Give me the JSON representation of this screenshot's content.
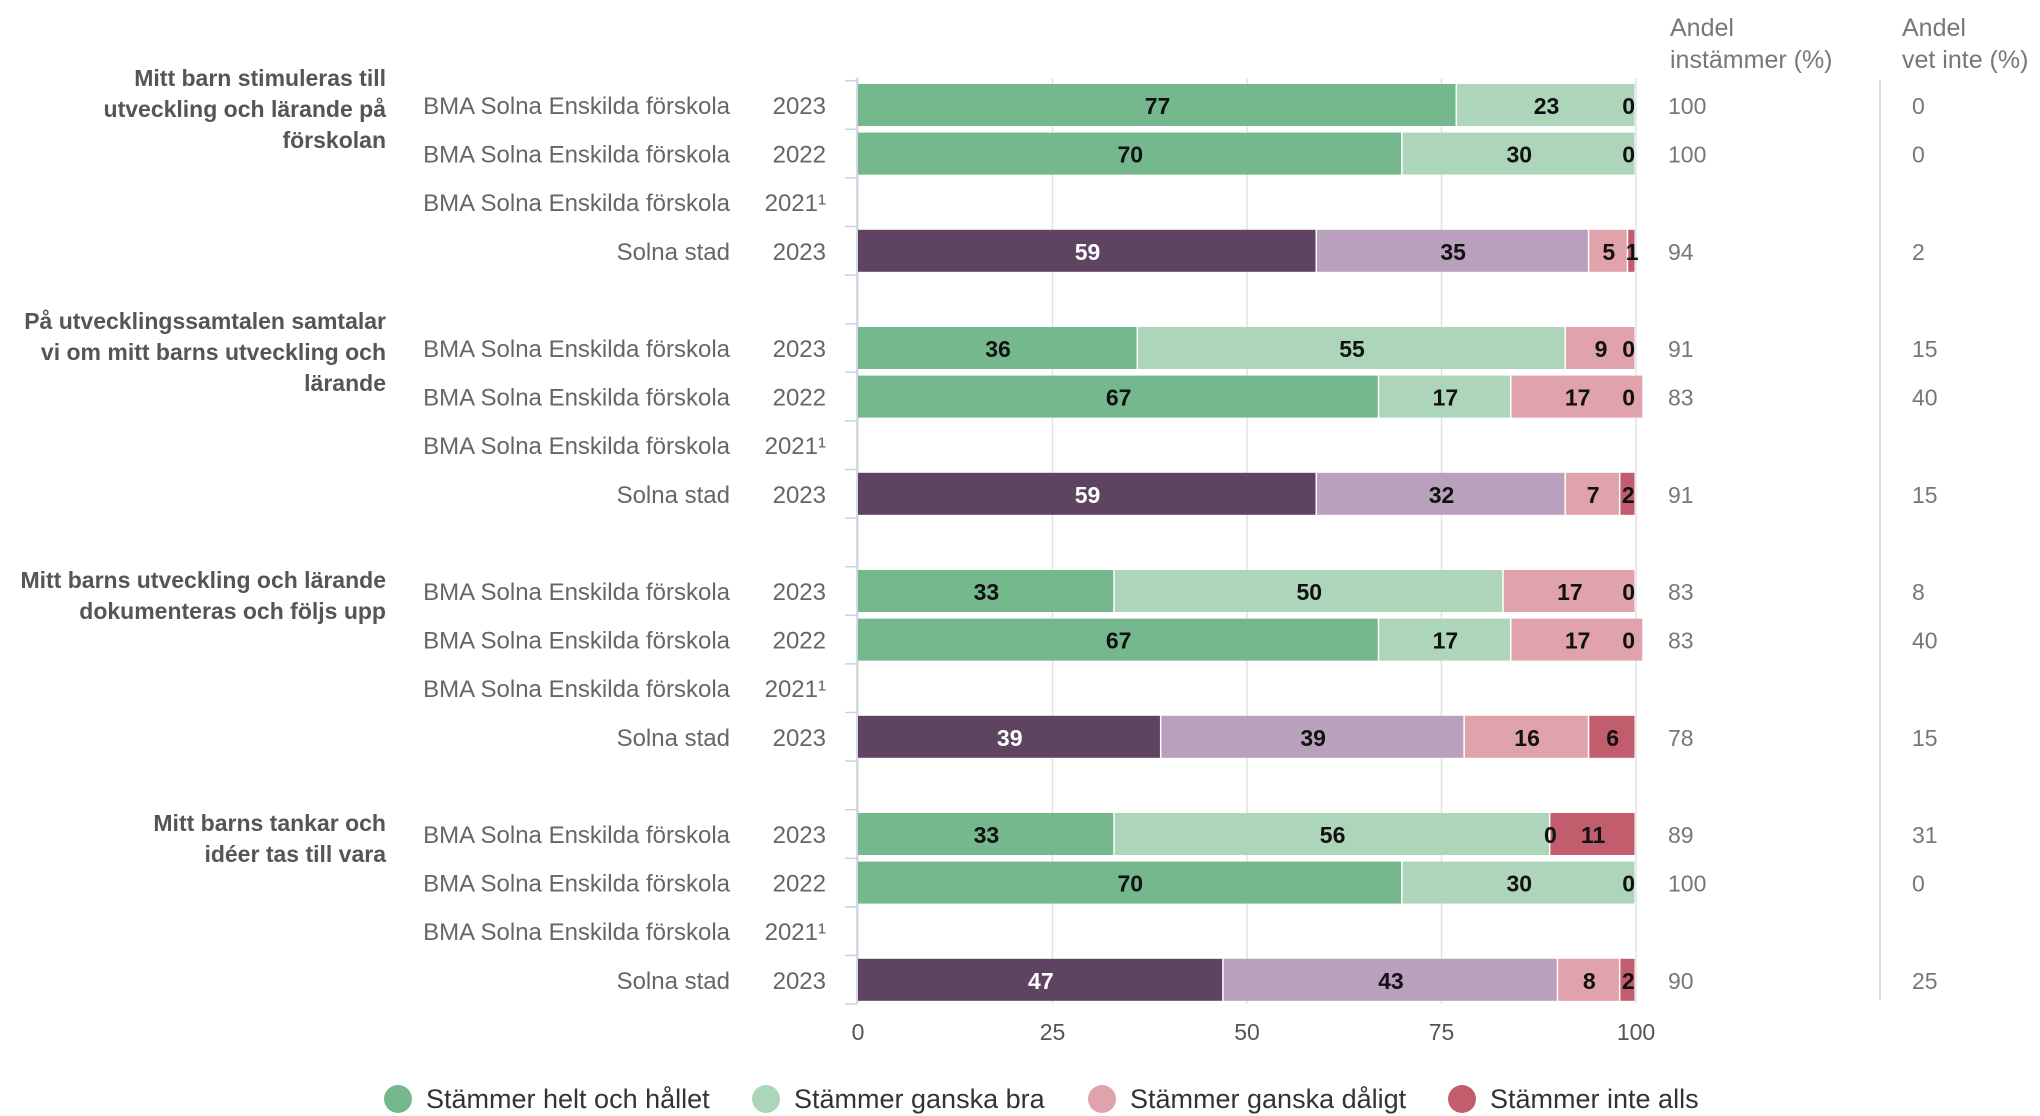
{
  "colors": {
    "school": [
      "#75b88d",
      "#acd5b9",
      "#e0a3ab",
      "#c15d6d"
    ],
    "city": [
      "#5e4461",
      "#b9a1bd",
      "#e0a3ab",
      "#c15d6d"
    ],
    "text_dark": "#111111",
    "text_light": "#ffffff",
    "label_gray": "#555555",
    "value_gray": "#777777"
  },
  "chart_data": {
    "type": "bar",
    "orientation": "horizontal",
    "stacked": true,
    "xlim": [
      0,
      100
    ],
    "x_ticks": [
      "0",
      "25",
      "50",
      "75",
      "100"
    ],
    "grid": true,
    "legend_position": "bottom",
    "column_headers": {
      "share_agree": [
        "Andel",
        "instämmer (%)"
      ],
      "share_dont_know": [
        "Andel",
        "vet inte (%)"
      ]
    },
    "series_names": [
      "Stämmer helt och hållet",
      "Stämmer ganska bra",
      "Stämmer ganska dåligt",
      "Stämmer inte alls"
    ],
    "groups": [
      {
        "question": [
          "Mitt barn stimuleras till",
          "utveckling och lärande på",
          "förskolan"
        ],
        "rows": [
          {
            "unit": "BMA Solna Enskilda förskola",
            "year": "2023",
            "kind": "school",
            "values": [
              77,
              23,
              0,
              0
            ],
            "labels": [
              "77",
              "23",
              "",
              "0"
            ],
            "share_agree": "100",
            "dont_know": "0"
          },
          {
            "unit": "BMA Solna Enskilda förskola",
            "year": "2022",
            "kind": "school",
            "values": [
              70,
              30,
              0,
              0
            ],
            "labels": [
              "70",
              "30",
              "",
              "0"
            ],
            "share_agree": "100",
            "dont_know": "0"
          },
          {
            "unit": "BMA Solna Enskilda förskola",
            "year": "2021¹",
            "kind": "school",
            "values": [],
            "labels": [],
            "share_agree": "",
            "dont_know": ""
          },
          {
            "unit": "Solna stad",
            "year": "2023",
            "kind": "city",
            "values": [
              59,
              35,
              5,
              1
            ],
            "labels": [
              "59",
              "35",
              "5",
              "1"
            ],
            "share_agree": "94",
            "dont_know": "2"
          }
        ]
      },
      {
        "question": [
          "På utvecklingssamtalen samtalar",
          "vi om mitt barns utveckling och",
          "lärande"
        ],
        "rows": [
          {
            "unit": "BMA Solna Enskilda förskola",
            "year": "2023",
            "kind": "school",
            "values": [
              36,
              55,
              9,
              0
            ],
            "labels": [
              "36",
              "55",
              "9",
              "0"
            ],
            "share_agree": "91",
            "dont_know": "15"
          },
          {
            "unit": "BMA Solna Enskilda förskola",
            "year": "2022",
            "kind": "school",
            "values": [
              67,
              17,
              17,
              0
            ],
            "labels": [
              "67",
              "17",
              "17",
              "0"
            ],
            "share_agree": "83",
            "dont_know": "40"
          },
          {
            "unit": "BMA Solna Enskilda förskola",
            "year": "2021¹",
            "kind": "school",
            "values": [],
            "labels": [],
            "share_agree": "",
            "dont_know": ""
          },
          {
            "unit": "Solna stad",
            "year": "2023",
            "kind": "city",
            "values": [
              59,
              32,
              7,
              2
            ],
            "labels": [
              "59",
              "32",
              "7",
              "2"
            ],
            "share_agree": "91",
            "dont_know": "15"
          }
        ]
      },
      {
        "question": [
          "Mitt barns utveckling och lärande",
          "dokumenteras och följs upp"
        ],
        "rows": [
          {
            "unit": "BMA Solna Enskilda förskola",
            "year": "2023",
            "kind": "school",
            "values": [
              33,
              50,
              17,
              0
            ],
            "labels": [
              "33",
              "50",
              "17",
              "0"
            ],
            "share_agree": "83",
            "dont_know": "8"
          },
          {
            "unit": "BMA Solna Enskilda förskola",
            "year": "2022",
            "kind": "school",
            "values": [
              67,
              17,
              17,
              0
            ],
            "labels": [
              "67",
              "17",
              "17",
              "0"
            ],
            "share_agree": "83",
            "dont_know": "40"
          },
          {
            "unit": "BMA Solna Enskilda förskola",
            "year": "2021¹",
            "kind": "school",
            "values": [],
            "labels": [],
            "share_agree": "",
            "dont_know": ""
          },
          {
            "unit": "Solna stad",
            "year": "2023",
            "kind": "city",
            "values": [
              39,
              39,
              16,
              6
            ],
            "labels": [
              "39",
              "39",
              "16",
              "6"
            ],
            "share_agree": "78",
            "dont_know": "15"
          }
        ]
      },
      {
        "question": [
          "Mitt barns tankar och",
          "idéer tas till vara"
        ],
        "rows": [
          {
            "unit": "BMA Solna Enskilda förskola",
            "year": "2023",
            "kind": "school",
            "values": [
              33,
              56,
              0,
              11
            ],
            "labels": [
              "33",
              "56",
              "0",
              "11"
            ],
            "share_agree": "89",
            "dont_know": "31"
          },
          {
            "unit": "BMA Solna Enskilda förskola",
            "year": "2022",
            "kind": "school",
            "values": [
              70,
              30,
              0,
              0
            ],
            "labels": [
              "70",
              "30",
              "",
              "0"
            ],
            "share_agree": "100",
            "dont_know": "0"
          },
          {
            "unit": "BMA Solna Enskilda förskola",
            "year": "2021¹",
            "kind": "school",
            "values": [],
            "labels": [],
            "share_agree": "",
            "dont_know": ""
          },
          {
            "unit": "Solna stad",
            "year": "2023",
            "kind": "city",
            "values": [
              47,
              43,
              8,
              2
            ],
            "labels": [
              "47",
              "43",
              "8",
              "2"
            ],
            "share_agree": "90",
            "dont_know": "25"
          }
        ]
      }
    ]
  },
  "legend": {
    "items": [
      {
        "label": "Stämmer helt och hållet",
        "color": "#75b88d"
      },
      {
        "label": "Stämmer ganska bra",
        "color": "#acd5b9"
      },
      {
        "label": "Stämmer ganska dåligt",
        "color": "#e0a3ab"
      },
      {
        "label": "Stämmer inte alls",
        "color": "#c15d6d"
      }
    ]
  }
}
